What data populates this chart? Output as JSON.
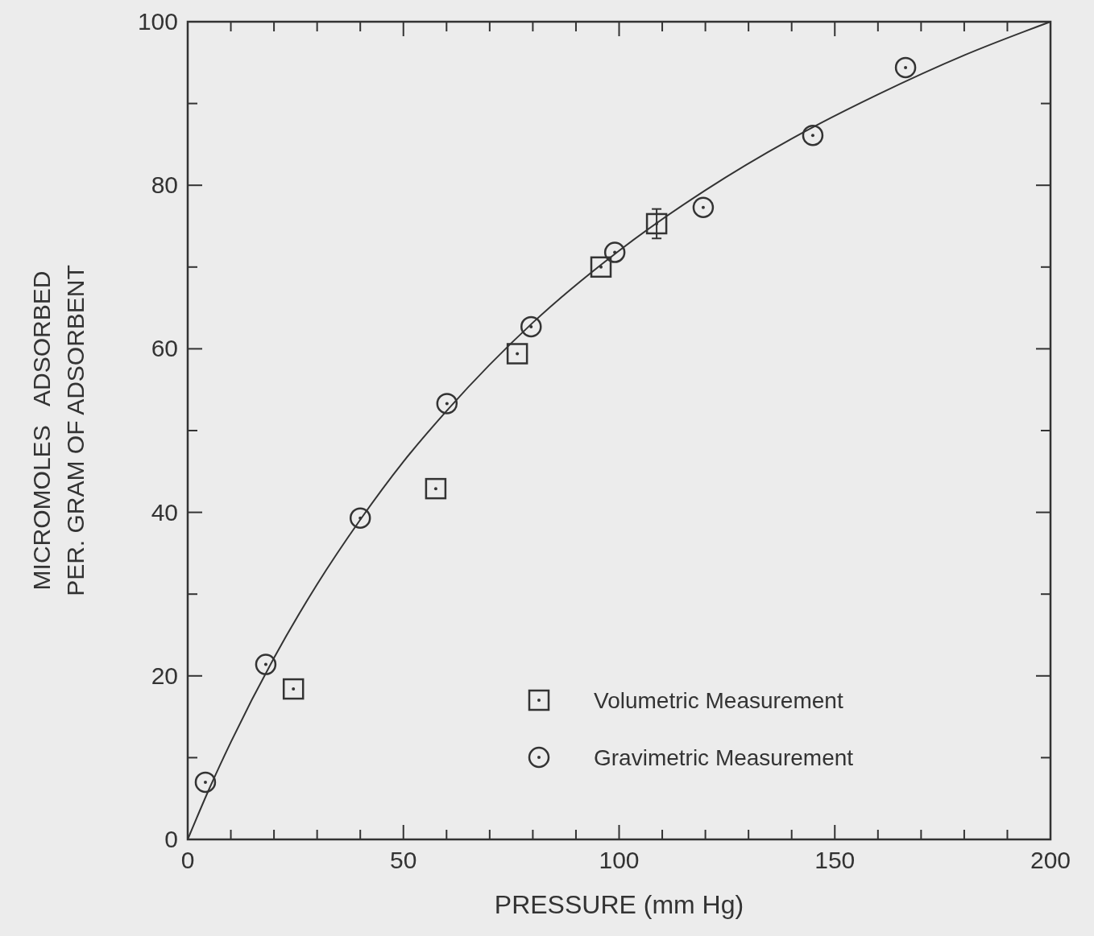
{
  "chart_data": {
    "type": "scatter",
    "xlabel": "PRESSURE (mm Hg)",
    "ylabel": "MICROMOLES   ADSORBED\nPER. GRAM OF ADSORBENT",
    "xlim": [
      0,
      200
    ],
    "ylim": [
      0,
      100
    ],
    "xticks": [
      0,
      {
        "value": 10,
        "label": null
      },
      {
        "value": 20,
        "label": null
      },
      {
        "value": 30,
        "label": null
      },
      {
        "value": 40,
        "label": null
      },
      50,
      {
        "value": 60,
        "label": null
      },
      {
        "value": 70,
        "label": null
      },
      {
        "value": 80,
        "label": null
      },
      {
        "value": 90,
        "label": null
      },
      100,
      {
        "value": 110,
        "label": null
      },
      {
        "value": 120,
        "label": null
      },
      {
        "value": 130,
        "label": null
      },
      {
        "value": 140,
        "label": null
      },
      150,
      {
        "value": 160,
        "label": null
      },
      {
        "value": 170,
        "label": null
      },
      {
        "value": 180,
        "label": null
      },
      {
        "value": 190,
        "label": null
      },
      200
    ],
    "yticks": [
      0,
      {
        "value": 10,
        "label": null
      },
      20,
      {
        "value": 30,
        "label": null
      },
      40,
      {
        "value": 50,
        "label": null
      },
      60,
      {
        "value": 70,
        "label": null
      },
      80,
      {
        "value": 90,
        "label": null
      },
      100
    ],
    "grid": false,
    "legend": "bottom right",
    "series": [
      {
        "type": "line",
        "color": "#333333",
        "x": [
          0,
          5,
          10,
          20,
          30,
          40,
          50,
          60,
          80,
          100,
          120,
          140,
          160,
          180,
          200
        ],
        "values": [
          0,
          6.2,
          11.9,
          22.2,
          31.2,
          39.1,
          46.2,
          52.4,
          63.2,
          72,
          79.4,
          85.7,
          91.1,
          95.9,
          100
        ]
      },
      {
        "name": "Volumetric Measurement",
        "color": "#333333",
        "marker": "square",
        "x": [
          24.5,
          57.5,
          76.4,
          95.8,
          108.7
        ],
        "values": [
          18.4,
          42.9,
          59.4,
          70,
          75.3
        ],
        "errors": [
          null,
          null,
          null,
          null,
          1.8
        ]
      },
      {
        "name": "Gravimetric Measurement",
        "color": "#333333",
        "marker": "circle",
        "x": [
          4.1,
          18.1,
          40,
          60.1,
          79.6,
          99,
          119.5,
          144.9,
          166.4
        ],
        "values": [
          7,
          21.4,
          39.3,
          53.3,
          62.7,
          71.8,
          77.3,
          86.1,
          94.4
        ]
      }
    ]
  }
}
